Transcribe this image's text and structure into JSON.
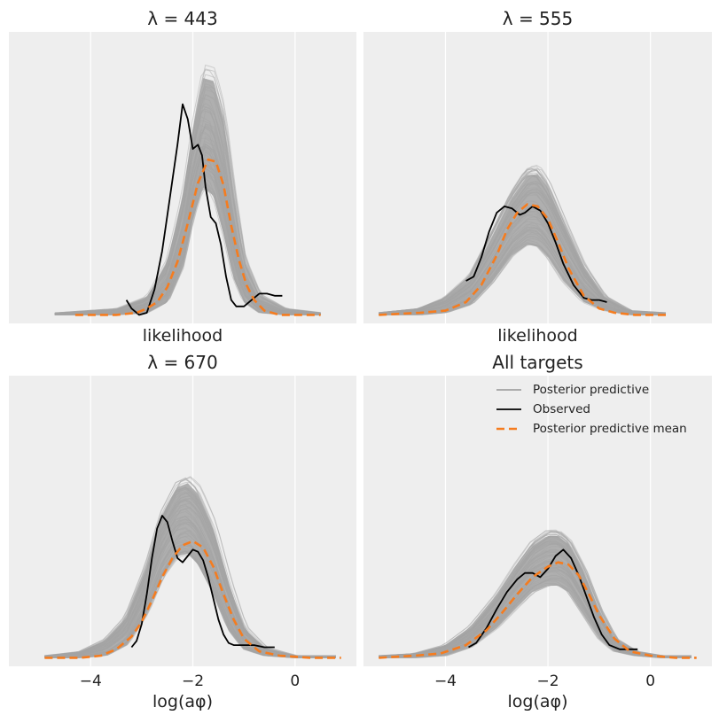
{
  "figure": {
    "background": "#ffffff",
    "panel_background": "#eeeeee",
    "grid_color": "#ffffff",
    "colors": {
      "posterior_predictive": "#a3a3a3",
      "observed": "#000000",
      "mean": "#f57c1f"
    }
  },
  "legend": {
    "placement": "top-right",
    "entries": [
      {
        "label": "Posterior predictive",
        "color": "#a3a3a3",
        "style": "solid"
      },
      {
        "label": "Observed",
        "color": "#000000",
        "style": "solid"
      },
      {
        "label": "Posterior predictive mean",
        "color": "#f57c1f",
        "style": "dashed"
      }
    ]
  },
  "chart_data": [
    {
      "type": "line",
      "title": "λ = 443",
      "xlabel": "likelihood",
      "xlim": [
        -5.6,
        1.2
      ],
      "ylim": [
        -0.04,
        1.33
      ],
      "xticks": [
        -4,
        -2,
        0
      ],
      "xtick_labels": [],
      "grid": true,
      "posterior_band": {
        "x": [
          -4.7,
          -3.5,
          -2.9,
          -2.5,
          -2.2,
          -2.0,
          -1.8,
          -1.6,
          -1.4,
          -1.2,
          -1.0,
          -0.7,
          -0.2,
          0.5
        ],
        "lower": [
          0,
          0,
          0.01,
          0.06,
          0.22,
          0.45,
          0.6,
          0.56,
          0.38,
          0.17,
          0.06,
          0.01,
          0,
          0
        ],
        "upper": [
          0.01,
          0.03,
          0.09,
          0.27,
          0.59,
          0.92,
          1.17,
          1.16,
          0.98,
          0.6,
          0.28,
          0.1,
          0.03,
          0.01
        ]
      },
      "observed": {
        "x": [
          -3.3,
          -3.2,
          -3.05,
          -2.9,
          -2.75,
          -2.6,
          -2.45,
          -2.3,
          -2.2,
          -2.1,
          -2.0,
          -1.9,
          -1.82,
          -1.75,
          -1.65,
          -1.55,
          -1.45,
          -1.35,
          -1.25,
          -1.15,
          -1.0,
          -0.85,
          -0.7,
          -0.55,
          -0.4,
          -0.25
        ],
        "y": [
          0.07,
          0.03,
          0.0,
          0.01,
          0.12,
          0.3,
          0.55,
          0.8,
          0.99,
          0.92,
          0.78,
          0.8,
          0.75,
          0.6,
          0.46,
          0.43,
          0.33,
          0.18,
          0.07,
          0.04,
          0.04,
          0.07,
          0.1,
          0.1,
          0.09,
          0.09
        ]
      },
      "mean": {
        "x": [
          -4.3,
          -3.5,
          -3.1,
          -2.9,
          -2.7,
          -2.5,
          -2.3,
          -2.1,
          -1.9,
          -1.7,
          -1.55,
          -1.4,
          -1.25,
          -1.1,
          -0.95,
          -0.8,
          -0.6,
          -0.3,
          0.2,
          0.5
        ],
        "y": [
          0,
          0,
          0.01,
          0.03,
          0.06,
          0.13,
          0.25,
          0.43,
          0.62,
          0.73,
          0.72,
          0.61,
          0.42,
          0.26,
          0.14,
          0.07,
          0.02,
          0.0,
          0,
          0
        ]
      }
    },
    {
      "type": "line",
      "title": "λ = 555",
      "xlabel": "likelihood",
      "xlim": [
        -5.6,
        1.2
      ],
      "ylim": [
        -0.04,
        1.33
      ],
      "xticks": [
        -4,
        -2,
        0
      ],
      "xtick_labels": [],
      "grid": true,
      "posterior_band": {
        "x": [
          -5.3,
          -4.5,
          -4.0,
          -3.5,
          -3.1,
          -2.7,
          -2.4,
          -2.2,
          -2.0,
          -1.7,
          -1.3,
          -0.9,
          -0.4,
          0.3
        ],
        "lower": [
          0,
          0,
          0.01,
          0.05,
          0.15,
          0.28,
          0.33,
          0.32,
          0.27,
          0.16,
          0.06,
          0.02,
          0,
          0
        ],
        "upper": [
          0.01,
          0.03,
          0.08,
          0.19,
          0.38,
          0.58,
          0.69,
          0.7,
          0.63,
          0.46,
          0.24,
          0.09,
          0.02,
          0.01
        ]
      },
      "observed": {
        "x": [
          -3.6,
          -3.45,
          -3.3,
          -3.15,
          -3.0,
          -2.85,
          -2.7,
          -2.55,
          -2.45,
          -2.3,
          -2.15,
          -2.0,
          -1.85,
          -1.7,
          -1.5,
          -1.3,
          -1.15,
          -1.0,
          -0.85
        ],
        "y": [
          0.16,
          0.18,
          0.27,
          0.39,
          0.48,
          0.51,
          0.5,
          0.47,
          0.48,
          0.51,
          0.49,
          0.43,
          0.34,
          0.24,
          0.14,
          0.08,
          0.07,
          0.07,
          0.06
        ]
      },
      "mean": {
        "x": [
          -5.3,
          -4.5,
          -4.0,
          -3.6,
          -3.3,
          -3.0,
          -2.8,
          -2.6,
          -2.4,
          -2.2,
          -2.0,
          -1.8,
          -1.6,
          -1.3,
          -1.0,
          -0.7,
          -0.3,
          0.3
        ],
        "y": [
          0,
          0.01,
          0.02,
          0.06,
          0.14,
          0.28,
          0.4,
          0.48,
          0.52,
          0.51,
          0.45,
          0.34,
          0.22,
          0.09,
          0.03,
          0.01,
          0,
          0
        ]
      }
    },
    {
      "type": "line",
      "title": "λ = 670",
      "xlabel": "log(aφ)",
      "xlim": [
        -5.6,
        1.2
      ],
      "ylim": [
        -0.04,
        1.33
      ],
      "xticks": [
        -4,
        -2,
        0
      ],
      "xtick_labels": [
        "−4",
        "−2",
        "0"
      ],
      "grid": true,
      "posterior_band": {
        "x": [
          -4.9,
          -4.2,
          -3.7,
          -3.3,
          -2.9,
          -2.6,
          -2.3,
          -2.1,
          -1.9,
          -1.6,
          -1.3,
          -1.0,
          -0.6,
          0.0,
          0.8
        ],
        "lower": [
          0,
          0,
          0.01,
          0.06,
          0.21,
          0.38,
          0.48,
          0.49,
          0.44,
          0.3,
          0.13,
          0.04,
          0.01,
          0,
          0
        ],
        "upper": [
          0.01,
          0.03,
          0.09,
          0.2,
          0.45,
          0.7,
          0.84,
          0.86,
          0.81,
          0.64,
          0.37,
          0.15,
          0.05,
          0.01,
          0.01
        ]
      },
      "observed": {
        "x": [
          -3.2,
          -3.1,
          -3.0,
          -2.9,
          -2.8,
          -2.7,
          -2.6,
          -2.5,
          -2.4,
          -2.3,
          -2.2,
          -2.1,
          -2.0,
          -1.9,
          -1.8,
          -1.7,
          -1.6,
          -1.5,
          -1.4,
          -1.3,
          -1.2,
          -1.1,
          -1.0,
          -0.8,
          -0.6,
          -0.4
        ],
        "y": [
          0.05,
          0.08,
          0.16,
          0.3,
          0.47,
          0.61,
          0.67,
          0.64,
          0.55,
          0.47,
          0.45,
          0.48,
          0.51,
          0.5,
          0.46,
          0.38,
          0.28,
          0.18,
          0.11,
          0.07,
          0.06,
          0.06,
          0.06,
          0.06,
          0.05,
          0.05
        ]
      },
      "mean": {
        "x": [
          -4.9,
          -4.2,
          -3.8,
          -3.5,
          -3.2,
          -3.0,
          -2.8,
          -2.6,
          -2.4,
          -2.2,
          -2.0,
          -1.8,
          -1.6,
          -1.4,
          -1.2,
          -1.0,
          -0.7,
          -0.3,
          0.3,
          0.9
        ],
        "y": [
          0,
          0,
          0.01,
          0.04,
          0.1,
          0.17,
          0.27,
          0.38,
          0.47,
          0.53,
          0.55,
          0.52,
          0.43,
          0.3,
          0.18,
          0.09,
          0.03,
          0.01,
          0,
          0
        ]
      }
    },
    {
      "type": "line",
      "title": "All targets",
      "xlabel": "log(aφ)",
      "xlim": [
        -5.6,
        1.2
      ],
      "ylim": [
        -0.04,
        1.33
      ],
      "xticks": [
        -4,
        -2,
        0
      ],
      "xtick_labels": [
        "−4",
        "−2",
        "0"
      ],
      "grid": true,
      "posterior_band": {
        "x": [
          -5.3,
          -4.6,
          -4.0,
          -3.5,
          -3.0,
          -2.6,
          -2.3,
          -2.0,
          -1.8,
          -1.6,
          -1.3,
          -1.0,
          -0.7,
          -0.3,
          0.2,
          0.8
        ],
        "lower": [
          0,
          0,
          0.01,
          0.05,
          0.14,
          0.24,
          0.31,
          0.34,
          0.34,
          0.31,
          0.2,
          0.09,
          0.03,
          0.01,
          0,
          0
        ],
        "upper": [
          0.01,
          0.02,
          0.06,
          0.15,
          0.3,
          0.45,
          0.55,
          0.6,
          0.6,
          0.56,
          0.42,
          0.23,
          0.09,
          0.03,
          0.01,
          0.01
        ]
      },
      "observed": {
        "x": [
          -3.55,
          -3.4,
          -3.2,
          -3.0,
          -2.8,
          -2.6,
          -2.45,
          -2.3,
          -2.15,
          -2.0,
          -1.85,
          -1.7,
          -1.55,
          -1.4,
          -1.25,
          -1.1,
          -0.95,
          -0.8,
          -0.6,
          -0.4,
          -0.25
        ],
        "y": [
          0.05,
          0.07,
          0.14,
          0.23,
          0.31,
          0.37,
          0.4,
          0.4,
          0.38,
          0.42,
          0.48,
          0.51,
          0.47,
          0.39,
          0.29,
          0.19,
          0.11,
          0.06,
          0.04,
          0.04,
          0.04
        ]
      },
      "mean": {
        "x": [
          -5.3,
          -4.6,
          -4.1,
          -3.6,
          -3.2,
          -2.9,
          -2.6,
          -2.3,
          -2.0,
          -1.8,
          -1.6,
          -1.4,
          -1.2,
          -1.0,
          -0.7,
          -0.4,
          0.0,
          0.5,
          0.9
        ],
        "y": [
          0,
          0.01,
          0.02,
          0.06,
          0.13,
          0.21,
          0.3,
          0.38,
          0.43,
          0.45,
          0.44,
          0.39,
          0.3,
          0.2,
          0.09,
          0.03,
          0.01,
          0,
          0
        ]
      }
    }
  ]
}
